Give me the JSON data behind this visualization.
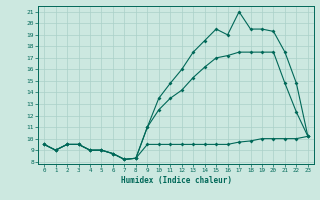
{
  "xlabel": "Humidex (Indice chaleur)",
  "bg_color": "#cce8e0",
  "line_color": "#006858",
  "grid_color": "#aad0c8",
  "xlim": [
    -0.5,
    23.5
  ],
  "ylim": [
    7.8,
    21.5
  ],
  "xticks": [
    0,
    1,
    2,
    3,
    4,
    5,
    6,
    7,
    8,
    9,
    10,
    11,
    12,
    13,
    14,
    15,
    16,
    17,
    18,
    19,
    20,
    21,
    22,
    23
  ],
  "yticks": [
    8,
    9,
    10,
    11,
    12,
    13,
    14,
    15,
    16,
    17,
    18,
    19,
    20,
    21
  ],
  "line1_x": [
    0,
    1,
    2,
    3,
    4,
    5,
    6,
    7,
    8,
    9,
    10,
    11,
    12,
    13,
    14,
    15,
    16,
    17,
    18,
    19,
    20,
    21,
    22,
    23
  ],
  "line1_y": [
    9.5,
    9.0,
    9.5,
    9.5,
    9.0,
    9.0,
    8.7,
    8.2,
    8.3,
    9.5,
    9.5,
    9.5,
    9.5,
    9.5,
    9.5,
    9.5,
    9.5,
    9.7,
    9.8,
    10.0,
    10.0,
    10.0,
    10.0,
    10.2
  ],
  "line2_x": [
    0,
    1,
    2,
    3,
    4,
    5,
    6,
    7,
    8,
    9,
    10,
    11,
    12,
    13,
    14,
    15,
    16,
    17,
    18,
    19,
    20,
    21,
    22,
    23
  ],
  "line2_y": [
    9.5,
    9.0,
    9.5,
    9.5,
    9.0,
    9.0,
    8.7,
    8.2,
    8.3,
    11.0,
    12.5,
    13.5,
    14.2,
    15.3,
    16.2,
    17.0,
    17.2,
    17.5,
    17.5,
    17.5,
    17.5,
    14.8,
    12.3,
    10.2
  ],
  "line3_x": [
    0,
    1,
    2,
    3,
    4,
    5,
    6,
    7,
    8,
    9,
    10,
    11,
    12,
    13,
    14,
    15,
    16,
    17,
    18,
    19,
    20,
    21,
    22,
    23
  ],
  "line3_y": [
    9.5,
    9.0,
    9.5,
    9.5,
    9.0,
    9.0,
    8.7,
    8.2,
    8.3,
    11.0,
    13.5,
    14.8,
    16.0,
    17.5,
    18.5,
    19.5,
    19.0,
    21.0,
    19.5,
    19.5,
    19.3,
    17.5,
    14.8,
    10.2
  ]
}
